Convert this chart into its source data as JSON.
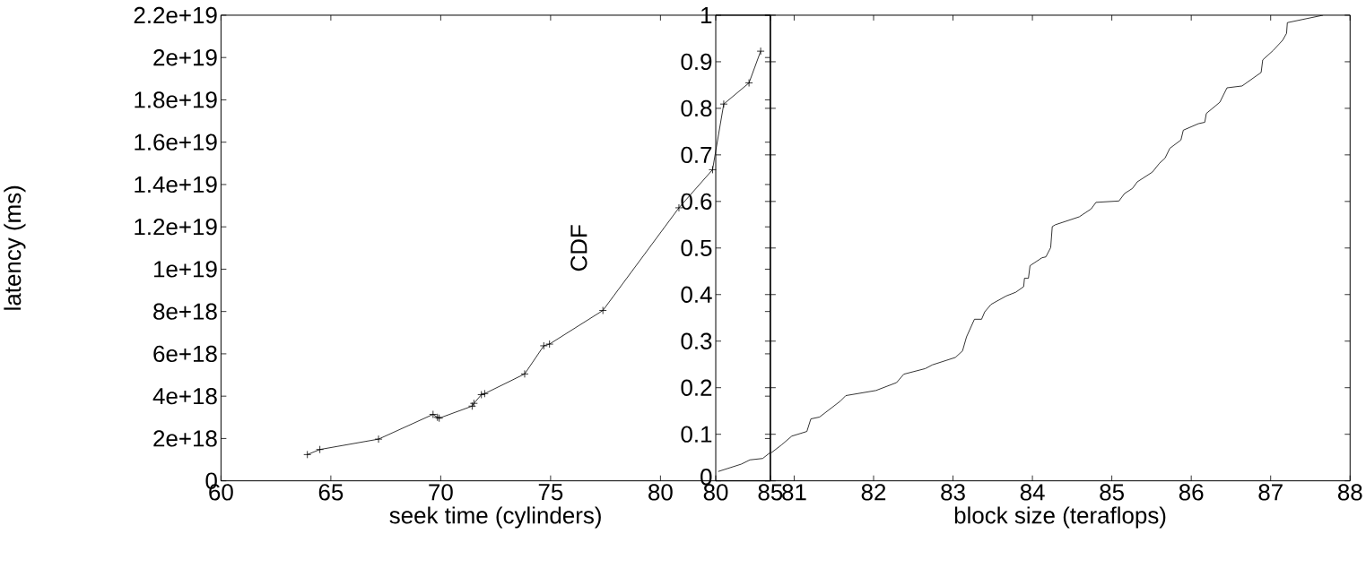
{
  "chart_data": [
    {
      "type": "line",
      "xlabel": "seek time (cylinders)",
      "ylabel": "latency (ms)",
      "color": "#000000",
      "marker": "cross",
      "x": [
        63.93,
        64.5,
        67.17,
        69.65,
        69.85,
        69.93,
        71.43,
        71.51,
        71.85,
        72.0,
        73.82,
        74.69,
        74.95,
        77.38,
        80.84,
        82.37,
        82.88,
        84.03,
        84.56
      ],
      "values": [
        1.24e+18,
        1.48e+18,
        1.97e+18,
        3.14e+18,
        3e+18,
        2.96e+18,
        3.53e+18,
        3.66e+18,
        4.07e+18,
        4.12e+18,
        5.05e+18,
        6.38e+18,
        6.46e+18,
        8.05e+18,
        1.29e+19,
        1.47e+19,
        1.78e+19,
        1.88e+19,
        2.03e+19
      ],
      "xlim": [
        60,
        85
      ],
      "xticks": [
        60,
        65,
        70,
        75,
        80
      ],
      "ylim": [
        0,
        2.2e+19
      ],
      "yticks": [
        0,
        {
          "value": 2e+18,
          "label": "2e+18"
        },
        {
          "value": 4e+18,
          "label": "4e+18"
        },
        {
          "value": 6e+18,
          "label": "6e+18"
        },
        {
          "value": 8e+18,
          "label": "8e+18"
        },
        {
          "value": 1e+19,
          "label": "1e+19"
        },
        {
          "value": 1.2e+19,
          "label": "1.2e+19"
        },
        {
          "value": 1.4e+19,
          "label": "1.4e+19"
        },
        {
          "value": 1.6e+19,
          "label": "1.6e+19"
        },
        {
          "value": 1.8e+19,
          "label": "1.8e+19"
        },
        {
          "value": 2e+19,
          "label": "2e+19"
        },
        {
          "value": 2.2e+19,
          "label": "2.2e+19"
        }
      ]
    },
    {
      "type": "line",
      "ylabel": "CDF",
      "color": "#000000",
      "marker": "none",
      "x": [
        80.22,
        82.36,
        83.13,
        84.3,
        85
      ],
      "values": [
        0.02,
        0.036,
        0.045,
        0.048,
        0.061
      ],
      "xlim": [
        80,
        85
      ],
      "xticks": [
        80,
        85
      ],
      "ylim": [
        0,
        1
      ],
      "yticks": [
        0,
        0.1,
        0.2,
        0.3,
        0.4,
        0.5,
        0.6,
        0.7,
        0.8,
        0.9,
        1
      ]
    },
    {
      "type": "line",
      "xlabel": "block size (teraflops)",
      "color": "#000000",
      "marker": "none",
      "tick_labels": "x",
      "x": [
        80.71,
        80.84,
        80.97,
        81.16,
        81.21,
        81.32,
        81.58,
        81.65,
        82.03,
        82.29,
        82.38,
        82.65,
        82.74,
        83.03,
        83.12,
        83.17,
        83.27,
        83.36,
        83.4,
        83.48,
        83.67,
        83.79,
        83.89,
        83.9,
        83.95,
        83.97,
        84.12,
        84.17,
        84.23,
        84.25,
        84.29,
        84.59,
        84.74,
        84.8,
        85.09,
        85.16,
        85.26,
        85.32,
        85.51,
        85.6,
        85.67,
        85.73,
        85.87,
        85.9,
        86.09,
        86.17,
        86.19,
        86.36,
        86.45,
        86.64,
        86.88,
        86.9,
        87.03,
        87.15,
        87.2,
        87.21,
        87.66
      ],
      "values": [
        0.06,
        0.077,
        0.096,
        0.106,
        0.133,
        0.137,
        0.171,
        0.183,
        0.194,
        0.211,
        0.229,
        0.241,
        0.249,
        0.265,
        0.279,
        0.309,
        0.347,
        0.347,
        0.363,
        0.379,
        0.397,
        0.405,
        0.417,
        0.435,
        0.435,
        0.462,
        0.479,
        0.481,
        0.501,
        0.546,
        0.55,
        0.567,
        0.584,
        0.598,
        0.601,
        0.617,
        0.628,
        0.642,
        0.663,
        0.682,
        0.693,
        0.714,
        0.732,
        0.753,
        0.767,
        0.77,
        0.789,
        0.813,
        0.844,
        0.848,
        0.877,
        0.904,
        0.924,
        0.946,
        0.961,
        0.984,
        1.0
      ],
      "xlim": [
        80.7,
        88
      ],
      "xticks": [
        81,
        82,
        83,
        84,
        85,
        86,
        87,
        88
      ],
      "ylim": [
        0,
        1
      ],
      "yticks": [
        {
          "value": 0,
          "label": null
        },
        {
          "value": 0.1,
          "label": null
        },
        {
          "value": 0.2,
          "label": null
        },
        {
          "value": 0.3,
          "label": null
        },
        {
          "value": 0.4,
          "label": null
        },
        {
          "value": 0.5,
          "label": null
        },
        {
          "value": 0.6,
          "label": null
        },
        {
          "value": 0.7,
          "label": null
        },
        {
          "value": 0.8,
          "label": null
        },
        {
          "value": 0.9,
          "label": null
        },
        {
          "value": 1,
          "label": null
        }
      ]
    }
  ]
}
